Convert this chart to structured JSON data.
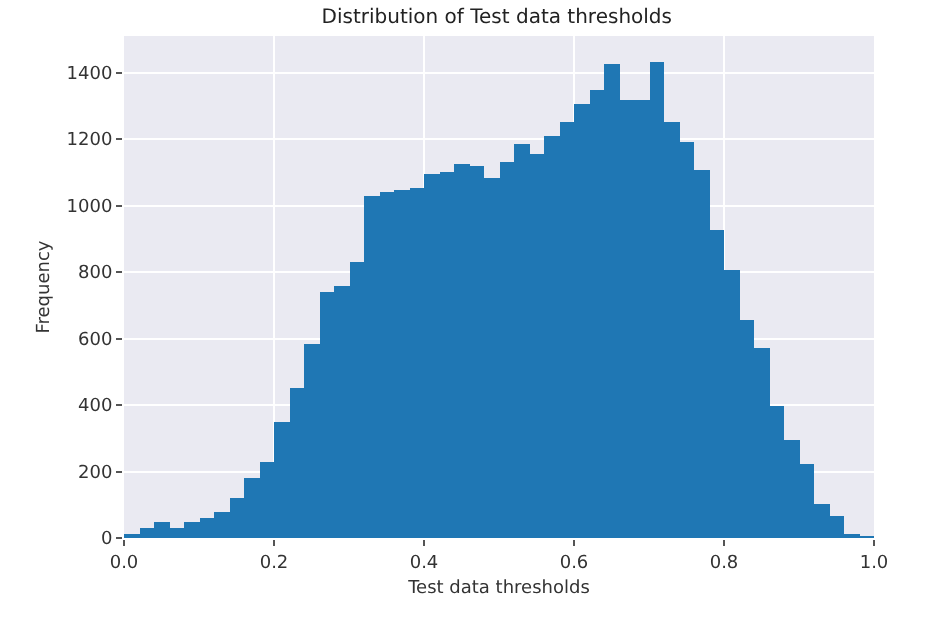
{
  "chart_data": {
    "type": "histogram",
    "title": "Distribution of Test data thresholds",
    "xlabel": "Test data thresholds",
    "ylabel": "Frequency",
    "color": "#1f77b4",
    "bins": [
      0,
      0.02,
      0.04,
      0.06,
      0.08,
      0.1,
      0.12,
      0.14,
      0.16,
      0.18,
      0.2,
      0.22,
      0.24,
      0.26,
      0.28,
      0.3,
      0.32,
      0.34,
      0.36,
      0.38,
      0.4,
      0.42,
      0.44,
      0.46,
      0.48,
      0.5,
      0.52,
      0.54,
      0.56,
      0.58,
      0.6,
      0.62,
      0.64,
      0.66,
      0.68,
      0.7,
      0.72,
      0.74,
      0.76,
      0.78,
      0.8,
      0.82,
      0.84,
      0.86,
      0.88,
      0.9,
      0.92,
      0.94,
      0.96,
      0.98,
      1.0
    ],
    "values": [
      12,
      28,
      48,
      32,
      50,
      58,
      78,
      118,
      178,
      230,
      350,
      450,
      584,
      740,
      758,
      830,
      1030,
      1038,
      1046,
      1054,
      1094,
      1100,
      1126,
      1116,
      1080,
      1134,
      1184,
      1154,
      1210,
      1250,
      1308,
      1350,
      1426,
      1320,
      1316,
      1430,
      1250,
      1194,
      1104,
      928,
      806,
      654,
      574,
      398,
      292,
      220,
      104,
      66,
      14,
      6
    ],
    "xlim": [
      0,
      1
    ],
    "xticks": [
      {
        "value": 0,
        "label": "0.0"
      },
      {
        "value": 0.2,
        "label": "0.2"
      },
      {
        "value": 0.4,
        "label": "0.4"
      },
      {
        "value": 0.6,
        "label": "0.6"
      },
      {
        "value": 0.8,
        "label": "0.8"
      },
      {
        "value": 1,
        "label": "1.0"
      }
    ],
    "ylim": [
      0,
      1510
    ],
    "yticks": [
      0,
      200,
      400,
      600,
      800,
      1000,
      1200,
      1400
    ],
    "grid": true
  }
}
